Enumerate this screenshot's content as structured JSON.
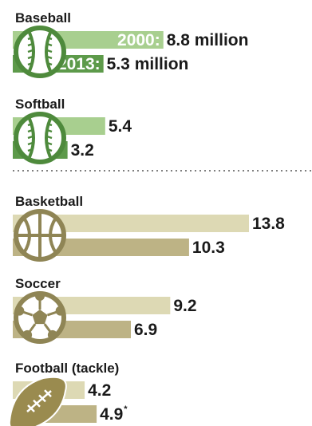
{
  "chart_data": {
    "type": "bar",
    "categories": [
      "Baseball",
      "Softball",
      "Basketball",
      "Soccer",
      "Football (tackle)"
    ],
    "series": [
      {
        "name": "2000",
        "values": [
          8.8,
          5.4,
          13.8,
          9.2,
          4.2
        ]
      },
      {
        "name": "2013",
        "values": [
          5.3,
          3.2,
          10.3,
          6.9,
          4.9
        ]
      }
    ],
    "value_labels": [
      [
        "8.8 million",
        "5.3 million"
      ],
      [
        "5.4",
        "3.2"
      ],
      [
        "13.8",
        "10.3"
      ],
      [
        "9.2",
        "6.9"
      ],
      [
        "4.2",
        "4.9"
      ]
    ],
    "series_prefix_labels": [
      "2000:",
      "2013:"
    ],
    "footnote_markers": [
      null,
      null,
      null,
      null,
      "*"
    ],
    "icons": [
      "baseball-icon",
      "baseball-icon",
      "basketball-icon",
      "soccer-ball-icon",
      "football-icon"
    ],
    "group_colors": [
      {
        "light": "#a8cf8f",
        "dark": "#5d9a4a",
        "icon_stroke": "#4e8a3c"
      },
      {
        "light": "#a8cf8f",
        "dark": "#5d9a4a",
        "icon_stroke": "#4e8a3c"
      },
      {
        "light": "#ddd9b4",
        "dark": "#bdb385",
        "icon_stroke": "#8f8555"
      },
      {
        "light": "#ddd9b4",
        "dark": "#bdb385",
        "icon_stroke": "#8f8555"
      },
      {
        "light": "#ddd9b4",
        "dark": "#bdb385",
        "icon_stroke": "#8f8555"
      }
    ],
    "divider_after": "Softball",
    "xlim": [
      0,
      14.5
    ],
    "legend": "inline on first group",
    "grid": false
  }
}
